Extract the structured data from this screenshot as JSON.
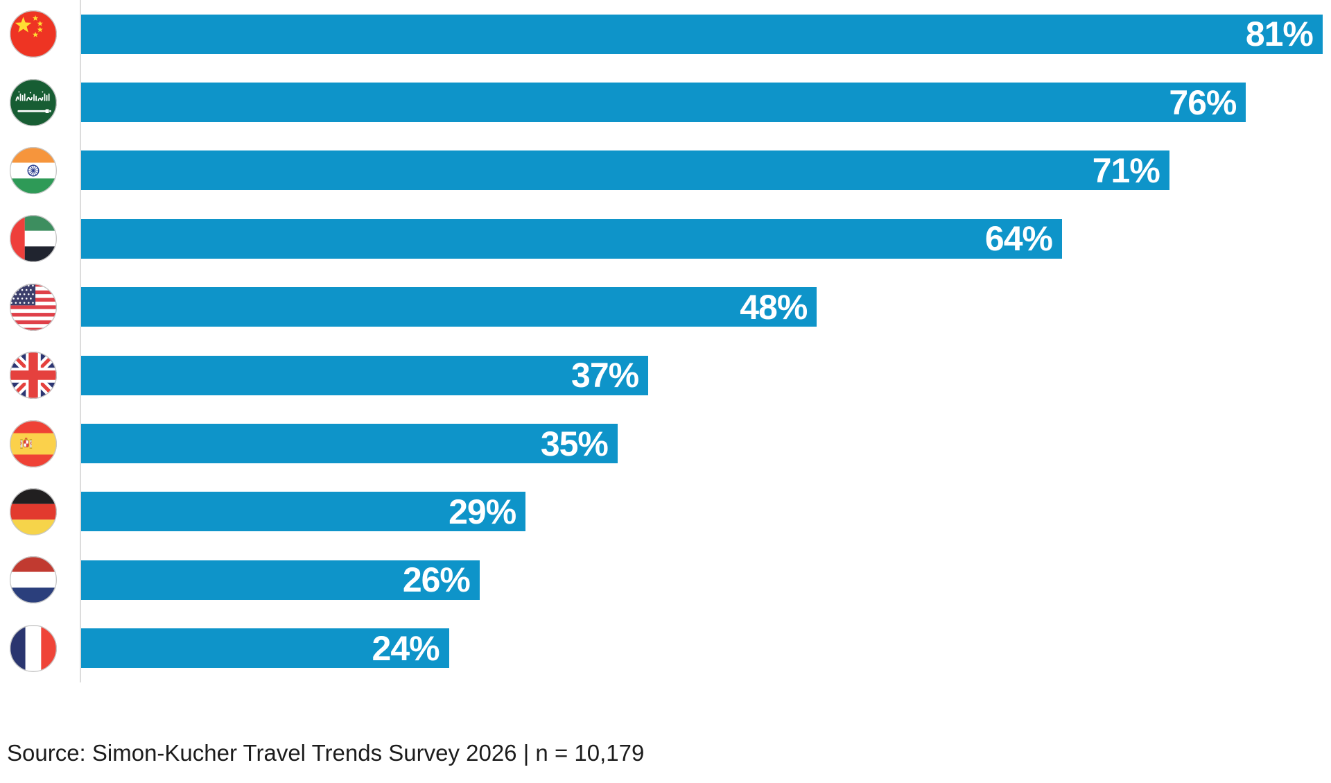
{
  "chart_data": {
    "type": "bar",
    "orientation": "horizontal",
    "title": "",
    "categories": [
      "China",
      "Saudi Arabia",
      "India",
      "United Arab Emirates",
      "United States",
      "United Kingdom",
      "Spain",
      "Germany",
      "Netherlands",
      "France"
    ],
    "category_icons": [
      "flag-china",
      "flag-saudi-arabia",
      "flag-india",
      "flag-uae",
      "flag-usa",
      "flag-uk",
      "flag-spain",
      "flag-germany",
      "flag-netherlands",
      "flag-france"
    ],
    "values": [
      81,
      76,
      71,
      64,
      48,
      37,
      35,
      29,
      26,
      24
    ],
    "labels": [
      "81%",
      "76%",
      "71%",
      "64%",
      "48%",
      "37%",
      "35%",
      "29%",
      "26%",
      "24%"
    ],
    "unit": "%",
    "xlim": [
      0,
      81.5
    ],
    "grid": false,
    "legend_position": "none",
    "bar_color": "#0E94C9",
    "value_label_color": "#FFFFFF",
    "axis_line_color": "#DCDCDC",
    "source_note": "Source: Simon-Kucher Travel Trends Survey 2026 | n = 10,179"
  }
}
